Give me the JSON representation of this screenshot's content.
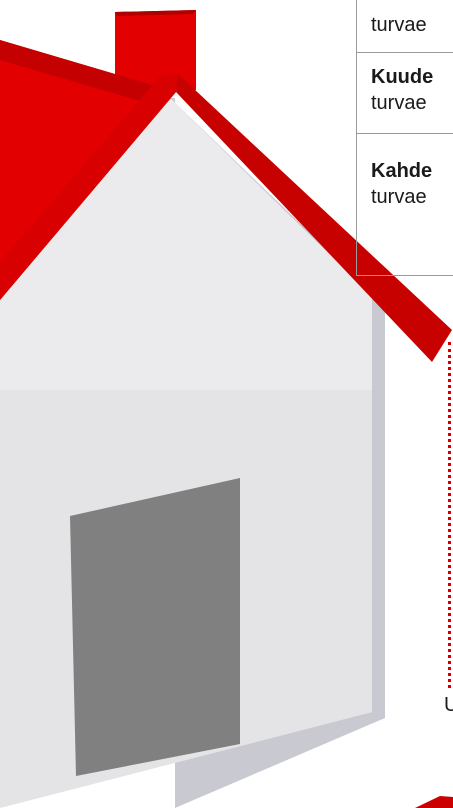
{
  "table": {
    "rows": [
      {
        "bold": "",
        "text": "turvae"
      },
      {
        "bold": "Kuude",
        "text": "turvae"
      },
      {
        "bold": "Kahde",
        "text": "turvae"
      }
    ]
  },
  "footer": {
    "letter": "U"
  },
  "colors": {
    "roof": "#cc0000",
    "chimney": "#e20000",
    "wall": "#ebebed",
    "wall_shadow": "#c9c9d2",
    "door": "#808080",
    "dotted_line": "#d10000"
  },
  "icons": [
    "house-illustration"
  ]
}
